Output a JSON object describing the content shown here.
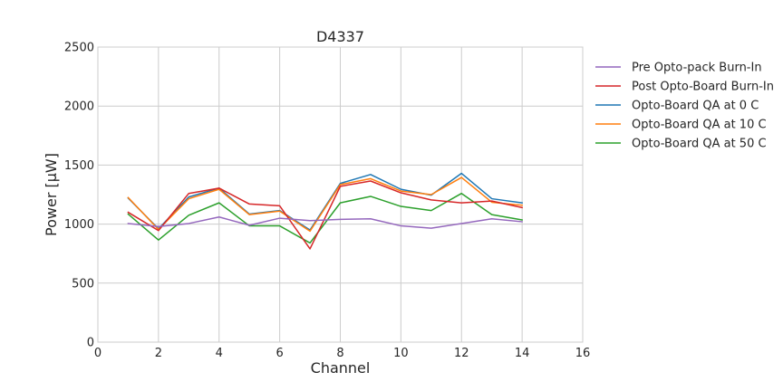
{
  "chart_data": {
    "type": "line",
    "title": "D4337",
    "xlabel": "Channel",
    "ylabel": "Power [μW]",
    "xlim": [
      0,
      16
    ],
    "ylim": [
      0,
      2500
    ],
    "xticks": [
      0,
      2,
      4,
      6,
      8,
      10,
      12,
      14,
      16
    ],
    "yticks": [
      0,
      500,
      1000,
      1500,
      2000,
      2500
    ],
    "grid": true,
    "legend": "outside-right",
    "x": [
      1,
      2,
      3,
      4,
      5,
      6,
      7,
      8,
      9,
      10,
      11,
      12,
      13,
      14
    ],
    "series": [
      {
        "name": "Pre Opto-pack Burn-In",
        "color": "#9467bd",
        "values": [
          1005,
          980,
          1005,
          1060,
          990,
          1050,
          1030,
          1040,
          1045,
          985,
          965,
          1005,
          1045,
          1020
        ]
      },
      {
        "name": "Post Opto-Board Burn-In",
        "color": "#d62728",
        "values": [
          1100,
          945,
          1260,
          1305,
          1170,
          1155,
          790,
          1320,
          1365,
          1265,
          1205,
          1180,
          1195,
          1140
        ]
      },
      {
        "name": "Opto-Board QA at 0 C",
        "color": "#1f77b4",
        "values": [
          1220,
          960,
          1230,
          1305,
          1085,
          1115,
          950,
          1345,
          1420,
          1295,
          1245,
          1430,
          1215,
          1180
        ]
      },
      {
        "name": "Opto-Board QA at 10 C",
        "color": "#ff7f0e",
        "values": [
          1225,
          955,
          1215,
          1295,
          1080,
          1110,
          940,
          1335,
          1385,
          1280,
          1250,
          1395,
          1185,
          1160
        ]
      },
      {
        "name": "Opto-Board QA at 50 C",
        "color": "#2ca02c",
        "values": [
          1085,
          865,
          1075,
          1180,
          985,
          985,
          840,
          1180,
          1235,
          1150,
          1115,
          1260,
          1080,
          1035
        ]
      }
    ]
  }
}
